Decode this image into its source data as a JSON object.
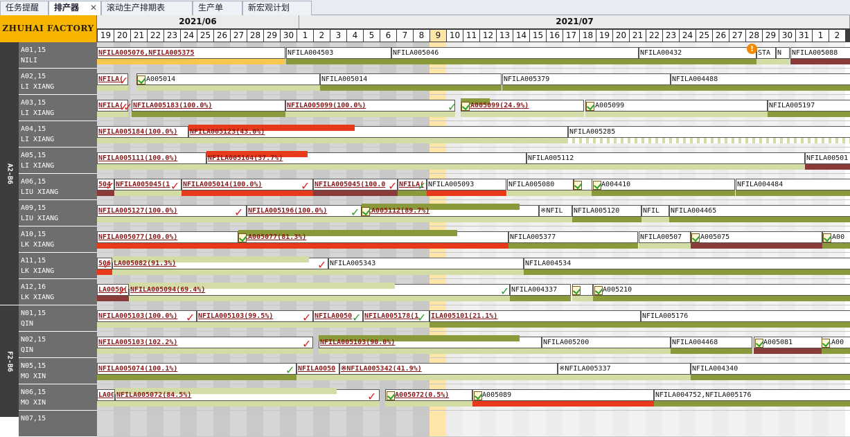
{
  "tabs": [
    {
      "label": "任务提醒",
      "active": false
    },
    {
      "label": "排产器",
      "active": true
    },
    {
      "label": "滚动生产排期表",
      "active": false
    },
    {
      "label": "生产单",
      "active": false
    },
    {
      "label": "新宏观计划",
      "active": false
    }
  ],
  "close_glyph": "✕",
  "factory": "ZHUHAI FACTORY",
  "months": [
    {
      "label": "2021/06"
    },
    {
      "label": "2021/07"
    }
  ],
  "days": [
    "19",
    "20",
    "21",
    "22",
    "23",
    "24",
    "25",
    "26",
    "27",
    "28",
    "29",
    "30",
    "1",
    "2",
    "3",
    "4",
    "5",
    "6",
    "7",
    "8",
    "9",
    "10",
    "11",
    "12",
    "13",
    "14",
    "15",
    "16",
    "17",
    "18",
    "19",
    "20",
    "21",
    "22",
    "23",
    "24",
    "25",
    "26",
    "27",
    "28",
    "29",
    "30",
    "31",
    "1",
    "2"
  ],
  "today_index": 20,
  "groups": [
    {
      "label": "A2-B6"
    },
    {
      "label": "F2-B6"
    }
  ],
  "colors": {
    "olive": "#8a9a3a",
    "light_olive": "#d4dca6",
    "red": "#e63a1a",
    "brown": "#8b3a3a",
    "yellow": "#f7c84e",
    "today": "#ffe6a8",
    "factory_bg": "#f7b500"
  },
  "rows": [
    {
      "line": "A01,15",
      "owner": "NILI"
    },
    {
      "line": "A02,15",
      "owner": "LI XIANG"
    },
    {
      "line": "A03,15",
      "owner": "LI XIANG"
    },
    {
      "line": "A04,15",
      "owner": "LI XIANG"
    },
    {
      "line": "A05,15",
      "owner": "LI XIANG"
    },
    {
      "line": "A06,15",
      "owner": "LIU XIANG"
    },
    {
      "line": "A09,15",
      "owner": "LIU XIANG"
    },
    {
      "line": "A10,15",
      "owner": "LK XIANG"
    },
    {
      "line": "A11,15",
      "owner": "LK XIANG"
    },
    {
      "line": "A12,16",
      "owner": "LK XIANG"
    },
    {
      "line": "N01,15",
      "owner": "QIN"
    },
    {
      "line": "N02,15",
      "owner": "QIN"
    },
    {
      "line": "N05,15",
      "owner": "MO XIN"
    },
    {
      "line": "N06,15",
      "owner": " MO XIN"
    },
    {
      "line": "N07,15",
      "owner": ""
    }
  ],
  "bar_labels": {
    "r0": [
      "NFILA005076,NFILA005375",
      "NFILA004503",
      "NFILA005046",
      "NFILA00432",
      "STA",
      "N",
      "NFILA005088"
    ],
    "r1": [
      "NFILA(",
      "ILA005014",
      "NFILA005014",
      "NFILA005379",
      "NFILA004488"
    ],
    "r2": [
      "NFILA(",
      "NFILA005183(100.0%)",
      "NFILA005099(100.0%)",
      "ILA005099(24.9%)",
      "ILA005099",
      "NFILA005197"
    ],
    "r3": [
      "NFILA005184(100.0%)",
      "NFILA005123(43.0%)",
      "NFILA005285"
    ],
    "r4": [
      "NFILA005111(100.0%)",
      "NFILA005164(37.7%)",
      "NFILA005112",
      "NFILA00501"
    ],
    "r5": [
      "504",
      "NFILA005045(1",
      "NFILA005014(100.0%)",
      "NFILA005045(100.0",
      "NFILA(",
      "NFILA005093",
      "NFILA005080",
      "",
      "ILA004410",
      "NFILA004484"
    ],
    "r6": [
      "NFILA005127(100.0%)",
      "NFILA005196(100.0%)",
      "ILA005112(89.7%)",
      "※NFIL",
      "NFILA005120",
      "NFIL",
      "NFILA004465"
    ],
    "r7": [
      "NFILA005077(100.0%)",
      "ILA005077(81.3%)",
      "NFILA005377",
      "NFILA00507",
      "ILA005075",
      "ILA00"
    ],
    "r8": [
      "506",
      "LA005082(91.3%)",
      "NFILA005343",
      "NFILA004534"
    ],
    "r9": [
      "LA0050(",
      "NFILA005094(69.4%)",
      "NFILA004337",
      "I",
      "ILA005210"
    ],
    "r10": [
      "NFILA005103(100.0%)",
      "NFILA005103(99.5%)",
      "NFILA0050",
      "NFILA005178(1",
      "ILA005101(21.1%)",
      "NFILA005176"
    ],
    "r11": [
      "NFILA005103(102.2%)",
      "NFILA005103(90.0%)",
      "NFILA005200",
      "NFILA004468",
      "ILA005081",
      "ILA00"
    ],
    "r12": [
      "NFILA005074(100.1%)",
      "NFILA0050",
      "※NFILA005342(41.9%)",
      "※NFILA005337",
      "NFILA004340"
    ],
    "r13": [
      "LA005",
      "NFILA005072(84.5%)",
      "ILA005072(0.5%)",
      "ILA005089",
      "NFILA004752,NFILA005176"
    ]
  }
}
